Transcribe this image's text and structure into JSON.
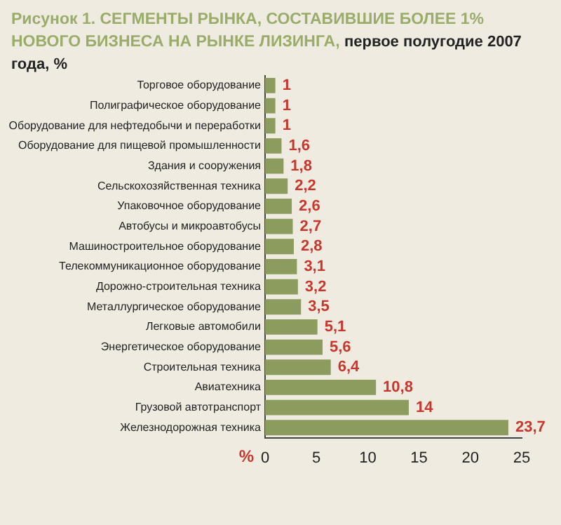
{
  "chart_data": {
    "type": "bar",
    "orientation": "horizontal",
    "title": "Рисунок 1. СЕГМЕНТЫ РЫНКА, СОСТАВИВШИЕ БОЛЕЕ 1% НОВОГО БИЗНЕСА НА РЫНКЕ ЛИЗИНГА,",
    "subtitle": "первое полугодие 2007 года, %",
    "xlabel": "%",
    "categories": [
      "Торговое оборудование",
      "Полиграфическое оборудование",
      "Оборудование для нефтедобычи и переработки",
      "Оборудование для пищевой промышленности",
      "Здания и сооружения",
      "Сельскохозяйственная техника",
      "Упаковочное оборудование",
      "Автобусы и микроавтобусы",
      "Машиностроительное оборудование",
      "Телекоммуникационное оборудование",
      "Дорожно-строительная техника",
      "Металлургическое оборудование",
      "Легковые автомобили",
      "Энергетическое оборудование",
      "Строительная техника",
      "Авиатехника",
      "Грузовой автотранспорт",
      "Железнодорожная техника"
    ],
    "values": [
      1,
      1,
      1,
      1.6,
      1.8,
      2.2,
      2.6,
      2.7,
      2.8,
      3.1,
      3.2,
      3.5,
      5.1,
      5.6,
      6.4,
      10.8,
      14,
      23.7
    ],
    "value_labels": [
      "1",
      "1",
      "1",
      "1,6",
      "1,8",
      "2,2",
      "2,6",
      "2,7",
      "2,8",
      "3,1",
      "3,2",
      "3,5",
      "5,1",
      "5,6",
      "6,4",
      "10,8",
      "14",
      "23,7"
    ],
    "color": "#8c9c5e",
    "xlim": [
      0,
      25
    ],
    "xticks": [
      0,
      5,
      10,
      15,
      20,
      25
    ],
    "grid": false,
    "legend": false
  }
}
